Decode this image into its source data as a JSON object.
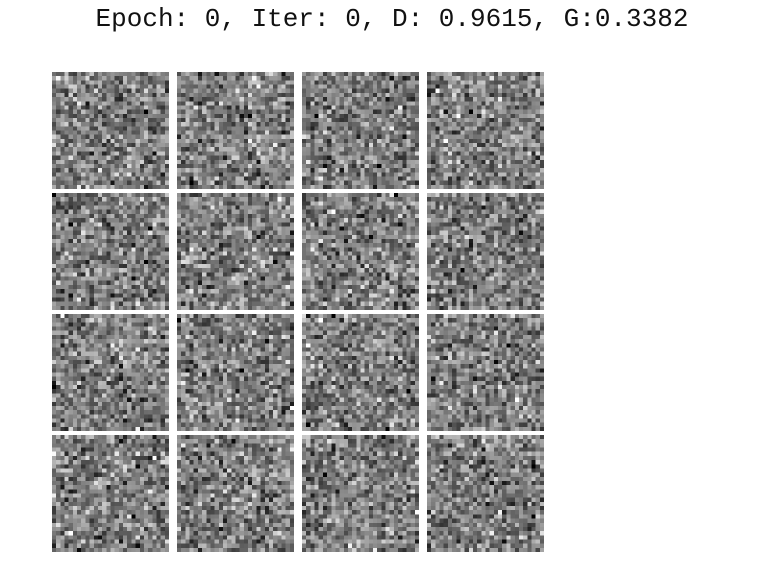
{
  "title": "Epoch: 0, Iter: 0, D: 0.9615, G:0.3382",
  "grid": {
    "rows": 4,
    "cols": 4,
    "sample_resolution": 28,
    "colormap": "grayscale",
    "content": "random noise samples"
  }
}
